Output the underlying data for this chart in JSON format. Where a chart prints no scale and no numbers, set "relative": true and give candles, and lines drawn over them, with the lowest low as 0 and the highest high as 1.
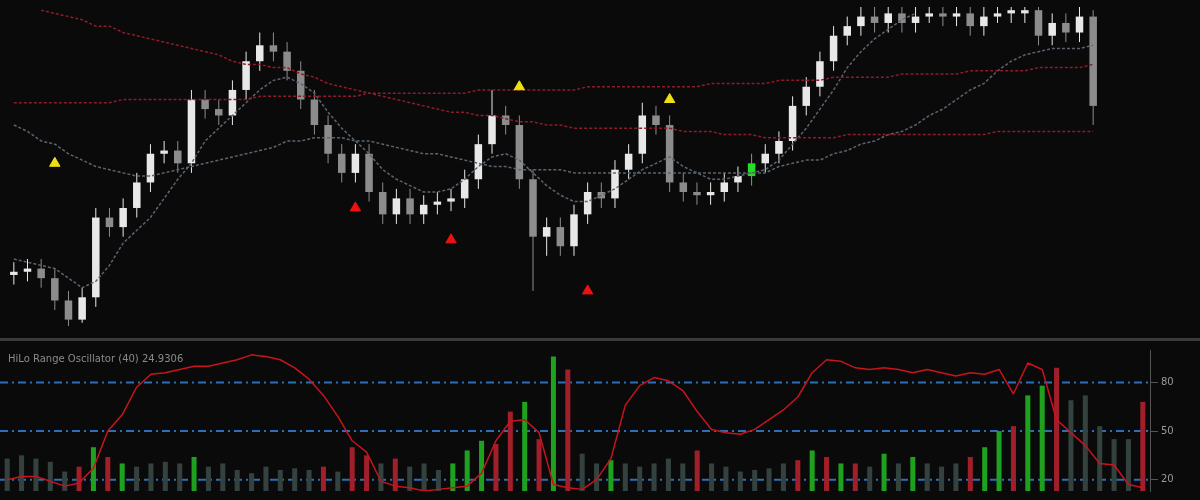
{
  "chart_data": [
    {
      "type": "candlestick",
      "relative": true,
      "legend": false,
      "grid": false,
      "tick_labels": false,
      "categories": [
        null,
        null,
        null,
        null,
        null,
        null,
        null,
        null,
        null,
        null,
        null,
        null,
        null,
        null,
        null,
        null,
        null,
        null,
        null,
        null,
        null,
        null,
        null,
        null,
        null,
        null,
        null,
        null,
        null,
        null,
        null,
        null,
        null,
        null,
        null,
        null,
        null,
        null,
        null,
        null,
        null,
        null,
        null,
        null,
        null,
        null,
        null,
        null,
        null,
        null,
        null,
        null,
        null,
        null,
        null,
        null,
        null,
        null,
        null,
        null,
        null,
        null,
        null,
        null,
        null,
        null,
        null,
        null,
        null,
        null,
        null,
        null,
        null,
        null,
        null,
        null,
        null,
        null,
        null,
        null
      ],
      "ohlc": [
        [
          0.16,
          0.2,
          0.13,
          0.17
        ],
        [
          0.17,
          0.21,
          0.14,
          0.18
        ],
        [
          0.18,
          0.21,
          0.12,
          0.15
        ],
        [
          0.15,
          0.18,
          0.05,
          0.08
        ],
        [
          0.08,
          0.11,
          0,
          0.02
        ],
        [
          0.02,
          0.12,
          0.01,
          0.09
        ],
        [
          0.09,
          0.37,
          0.06,
          0.34
        ],
        [
          0.34,
          0.37,
          0.28,
          0.31
        ],
        [
          0.31,
          0.4,
          0.28,
          0.37
        ],
        [
          0.37,
          0.48,
          0.34,
          0.45
        ],
        [
          0.45,
          0.57,
          0.42,
          0.54
        ],
        [
          0.54,
          0.58,
          0.51,
          0.55
        ],
        [
          0.55,
          0.58,
          0.48,
          0.51
        ],
        [
          0.51,
          0.74,
          0.48,
          0.71
        ],
        [
          0.71,
          0.74,
          0.65,
          0.68
        ],
        [
          0.68,
          0.71,
          0.63,
          0.66
        ],
        [
          0.66,
          0.77,
          0.63,
          0.74
        ],
        [
          0.74,
          0.86,
          0.71,
          0.83
        ],
        [
          0.83,
          0.92,
          0.8,
          0.88
        ],
        [
          0.88,
          0.92,
          0.83,
          0.86
        ],
        [
          0.86,
          0.89,
          0.77,
          0.8
        ],
        [
          0.8,
          0.83,
          0.68,
          0.71
        ],
        [
          0.71,
          0.74,
          0.6,
          0.63
        ],
        [
          0.63,
          0.66,
          0.51,
          0.54
        ],
        [
          0.54,
          0.57,
          0.45,
          0.48
        ],
        [
          0.48,
          0.57,
          0.45,
          0.54
        ],
        [
          0.54,
          0.57,
          0.39,
          0.42
        ],
        [
          0.42,
          0.45,
          0.32,
          0.35
        ],
        [
          0.35,
          0.43,
          0.32,
          0.4
        ],
        [
          0.4,
          0.43,
          0.32,
          0.35
        ],
        [
          0.35,
          0.41,
          0.32,
          0.38
        ],
        [
          0.38,
          0.42,
          0.35,
          0.39
        ],
        [
          0.39,
          0.43,
          0.36,
          0.4
        ],
        [
          0.4,
          0.49,
          0.37,
          0.46
        ],
        [
          0.46,
          0.6,
          0.43,
          0.57
        ],
        [
          0.57,
          0.74,
          0.54,
          0.66
        ],
        [
          0.66,
          0.69,
          0.6,
          0.63
        ],
        [
          0.63,
          0.66,
          0.43,
          0.46
        ],
        [
          0.46,
          0.49,
          0.11,
          0.28
        ],
        [
          0.28,
          0.34,
          0.22,
          0.31
        ],
        [
          0.31,
          0.34,
          0.22,
          0.25
        ],
        [
          0.25,
          0.38,
          0.22,
          0.35
        ],
        [
          0.35,
          0.45,
          0.32,
          0.42
        ],
        [
          0.42,
          0.45,
          0.37,
          0.4
        ],
        [
          0.4,
          0.52,
          0.37,
          0.49
        ],
        [
          0.49,
          0.57,
          0.46,
          0.54
        ],
        [
          0.54,
          0.7,
          0.51,
          0.66
        ],
        [
          0.66,
          0.69,
          0.6,
          0.63
        ],
        [
          0.63,
          0.66,
          0.42,
          0.45
        ],
        [
          0.45,
          0.48,
          0.39,
          0.42
        ],
        [
          0.42,
          0.45,
          0.38,
          0.41
        ],
        [
          0.41,
          0.45,
          0.38,
          0.42
        ],
        [
          0.42,
          0.48,
          0.39,
          0.45
        ],
        [
          0.45,
          0.5,
          0.42,
          0.47
        ],
        [
          0.47,
          0.54,
          0.44,
          0.51
        ],
        [
          0.51,
          0.57,
          0.48,
          0.54
        ],
        [
          0.54,
          0.61,
          0.51,
          0.58
        ],
        [
          0.58,
          0.72,
          0.55,
          0.69
        ],
        [
          0.69,
          0.78,
          0.66,
          0.75
        ],
        [
          0.75,
          0.86,
          0.72,
          0.83
        ],
        [
          0.83,
          0.94,
          0.8,
          0.91
        ],
        [
          0.91,
          0.97,
          0.88,
          0.94
        ],
        [
          0.94,
          1,
          0.91,
          0.97
        ],
        [
          0.97,
          1,
          0.92,
          0.95
        ],
        [
          0.95,
          1,
          0.92,
          0.98
        ],
        [
          0.98,
          1,
          0.92,
          0.95
        ],
        [
          0.95,
          1,
          0.92,
          0.97
        ],
        [
          0.97,
          1,
          0.95,
          0.98
        ],
        [
          0.98,
          1,
          0.94,
          0.97
        ],
        [
          0.97,
          1,
          0.94,
          0.98
        ],
        [
          0.98,
          1,
          0.91,
          0.94
        ],
        [
          0.94,
          1,
          0.91,
          0.97
        ],
        [
          0.97,
          1,
          0.95,
          0.98
        ],
        [
          0.98,
          1,
          0.95,
          0.99
        ],
        [
          0.98,
          1,
          0.95,
          0.99
        ],
        [
          0.99,
          1,
          0.88,
          0.91
        ],
        [
          0.91,
          0.98,
          0.88,
          0.95
        ],
        [
          0.95,
          0.98,
          0.89,
          0.92
        ],
        [
          0.92,
          1,
          0.89,
          0.97
        ],
        [
          0.97,
          0.99,
          0.63,
          0.69
        ]
      ],
      "colors": [
        "#e8e8e8",
        "#e8e8e8",
        "#8c8c8c",
        "#8c8c8c",
        "#8c8c8c",
        "#e8e8e8",
        "#e8e8e8",
        "#8c8c8c",
        "#e8e8e8",
        "#e8e8e8",
        "#e8e8e8",
        "#e8e8e8",
        "#8c8c8c",
        "#e8e8e8",
        "#8c8c8c",
        "#8c8c8c",
        "#e8e8e8",
        "#e8e8e8",
        "#e8e8e8",
        "#8c8c8c",
        "#8c8c8c",
        "#8c8c8c",
        "#8c8c8c",
        "#8c8c8c",
        "#8c8c8c",
        "#e8e8e8",
        "#8c8c8c",
        "#8c8c8c",
        "#e8e8e8",
        "#8c8c8c",
        "#e8e8e8",
        "#e8e8e8",
        "#e8e8e8",
        "#e8e8e8",
        "#e8e8e8",
        "#e8e8e8",
        "#8c8c8c",
        "#8c8c8c",
        "#8c8c8c",
        "#e8e8e8",
        "#8c8c8c",
        "#e8e8e8",
        "#e8e8e8",
        "#8c8c8c",
        "#e8e8e8",
        "#e8e8e8",
        "#e8e8e8",
        "#8c8c8c",
        "#8c8c8c",
        "#8c8c8c",
        "#8c8c8c",
        "#e8e8e8",
        "#e8e8e8",
        "#e8e8e8",
        "#22dd22",
        "#e8e8e8",
        "#e8e8e8",
        "#e8e8e8",
        "#e8e8e8",
        "#e8e8e8",
        "#e8e8e8",
        "#e8e8e8",
        "#e8e8e8",
        "#8c8c8c",
        "#e8e8e8",
        "#8c8c8c",
        "#e8e8e8",
        "#e8e8e8",
        "#8c8c8c",
        "#e8e8e8",
        "#8c8c8c",
        "#e8e8e8",
        "#e8e8e8",
        "#e8e8e8",
        "#e8e8e8",
        "#8c8c8c",
        "#e8e8e8",
        "#8c8c8c",
        "#e8e8e8",
        "#8c8c8c"
      ],
      "series": [
        {
          "type": "line",
          "color": "#8e1a2c",
          "line_style": "dotted",
          "values": [
            null,
            null,
            0.99,
            0.98,
            0.97,
            0.96,
            0.94,
            0.94,
            0.92,
            0.91,
            0.9,
            0.89,
            0.88,
            0.87,
            0.86,
            0.85,
            0.83,
            0.82,
            0.82,
            0.81,
            0.81,
            0.79,
            0.78,
            0.76,
            0.75,
            0.74,
            0.73,
            0.72,
            0.71,
            0.7,
            0.69,
            0.68,
            0.67,
            0.67,
            0.66,
            0.66,
            0.65,
            0.64,
            0.64,
            0.63,
            0.63,
            0.62,
            0.62,
            0.62,
            0.62,
            0.62,
            0.62,
            0.62,
            0.62,
            0.61,
            0.61,
            0.61,
            0.6,
            0.6,
            0.6,
            0.59,
            0.59,
            0.59,
            0.59,
            0.59,
            0.59,
            0.6,
            0.6,
            0.6,
            0.6,
            0.6,
            0.6,
            0.6,
            0.6,
            0.6,
            0.6,
            0.6,
            0.61,
            0.61,
            0.61,
            0.61,
            0.61,
            0.61,
            0.61,
            0.61
          ]
        },
        {
          "type": "line",
          "color": "#8e1a2c",
          "line_style": "dotted",
          "values": [
            0.7,
            0.7,
            0.7,
            0.7,
            0.7,
            0.7,
            0.7,
            0.7,
            0.71,
            0.71,
            0.71,
            0.71,
            0.71,
            0.71,
            0.71,
            0.71,
            0.71,
            0.71,
            0.72,
            0.72,
            0.72,
            0.72,
            0.72,
            0.72,
            0.72,
            0.72,
            0.73,
            0.73,
            0.73,
            0.73,
            0.73,
            0.73,
            0.73,
            0.73,
            0.74,
            0.74,
            0.74,
            0.74,
            0.74,
            0.74,
            0.74,
            0.74,
            0.75,
            0.75,
            0.75,
            0.75,
            0.75,
            0.75,
            0.75,
            0.75,
            0.75,
            0.76,
            0.76,
            0.76,
            0.76,
            0.76,
            0.77,
            0.77,
            0.77,
            0.77,
            0.78,
            0.78,
            0.78,
            0.78,
            0.78,
            0.79,
            0.79,
            0.79,
            0.79,
            0.79,
            0.8,
            0.8,
            0.8,
            0.8,
            0.8,
            0.81,
            0.81,
            0.81,
            0.81,
            0.82
          ]
        },
        {
          "type": "line",
          "color": "#5a6470",
          "line_style": "dotted",
          "values": [
            0.63,
            0.61,
            0.58,
            0.57,
            0.54,
            0.52,
            0.5,
            0.49,
            0.48,
            0.47,
            0.47,
            0.48,
            0.49,
            0.5,
            0.51,
            0.52,
            0.53,
            0.54,
            0.55,
            0.56,
            0.58,
            0.58,
            0.59,
            0.59,
            0.59,
            0.58,
            0.58,
            0.57,
            0.56,
            0.55,
            0.54,
            0.54,
            0.53,
            0.52,
            0.51,
            0.5,
            0.5,
            0.49,
            0.49,
            0.49,
            0.49,
            0.48,
            0.48,
            0.48,
            0.48,
            0.48,
            0.48,
            0.48,
            0.48,
            0.48,
            0.48,
            0.48,
            0.48,
            0.48,
            0.48,
            0.48,
            0.5,
            0.51,
            0.52,
            0.52,
            0.54,
            0.55,
            0.57,
            0.58,
            0.6,
            0.61,
            0.63,
            0.66,
            0.68,
            0.71,
            0.74,
            0.76,
            0.8,
            0.83,
            0.85,
            0.86,
            0.87,
            0.87,
            0.87,
            0.88
          ]
        },
        {
          "type": "line",
          "color": "#5a6470",
          "line_style": "dotted",
          "values": [
            0.21,
            0.2,
            0.19,
            0.18,
            0.15,
            0.12,
            0.14,
            0.19,
            0.26,
            0.3,
            0.34,
            0.4,
            0.46,
            0.51,
            0.58,
            0.62,
            0.66,
            0.7,
            0.74,
            0.77,
            0.78,
            0.76,
            0.73,
            0.67,
            0.62,
            0.58,
            0.54,
            0.49,
            0.46,
            0.44,
            0.42,
            0.42,
            0.43,
            0.46,
            0.5,
            0.53,
            0.54,
            0.52,
            0.48,
            0.44,
            0.41,
            0.39,
            0.39,
            0.41,
            0.43,
            0.46,
            0.49,
            0.51,
            0.53,
            0.5,
            0.48,
            0.46,
            0.46,
            0.47,
            0.48,
            0.49,
            0.52,
            0.57,
            0.62,
            0.68,
            0.74,
            0.81,
            0.86,
            0.9,
            0.93,
            0.96,
            0.98,
            null,
            null,
            null,
            null,
            null,
            null,
            null,
            null,
            null,
            null,
            null,
            null,
            null
          ]
        },
        {
          "type": "scatter",
          "color": "#f0e010",
          "marker": "triangle",
          "values": [
            null,
            null,
            null,
            0.51,
            null,
            null,
            null,
            null,
            null,
            null,
            null,
            null,
            null,
            null,
            null,
            null,
            null,
            null,
            null,
            null,
            null,
            null,
            null,
            null,
            null,
            null,
            null,
            null,
            null,
            null,
            null,
            null,
            null,
            null,
            null,
            null,
            null,
            0.75,
            null,
            null,
            null,
            null,
            null,
            null,
            null,
            null,
            null,
            null,
            0.71,
            null,
            null,
            null,
            null,
            null,
            null,
            null,
            null,
            null,
            null,
            null,
            null,
            null,
            null,
            null,
            null,
            null,
            null,
            null,
            null,
            null,
            null,
            null,
            null,
            null,
            null,
            null,
            null,
            null,
            null,
            null
          ]
        },
        {
          "type": "scatter",
          "color": "#ee1111",
          "marker": "triangle",
          "values": [
            null,
            null,
            null,
            null,
            null,
            null,
            null,
            null,
            null,
            null,
            null,
            null,
            null,
            null,
            null,
            null,
            null,
            null,
            null,
            null,
            null,
            null,
            null,
            null,
            null,
            0.37,
            null,
            null,
            null,
            null,
            null,
            null,
            0.27,
            null,
            null,
            null,
            null,
            null,
            null,
            null,
            null,
            null,
            0.11,
            null,
            null,
            null,
            null,
            null,
            null,
            null,
            null,
            null,
            null,
            null,
            null,
            null,
            null,
            null,
            null,
            null,
            null,
            null,
            null,
            null,
            null,
            null,
            null,
            null,
            null,
            null,
            null,
            null,
            null,
            null,
            null,
            null,
            null,
            null,
            null,
            null
          ]
        }
      ]
    },
    {
      "type": "line",
      "title": "HiLo Range Oscillator (40) 24.9306",
      "legend": false,
      "grid": false,
      "tick_labels": "y",
      "categories": [
        null,
        null,
        null,
        null,
        null,
        null,
        null,
        null,
        null,
        null,
        null,
        null,
        null,
        null,
        null,
        null,
        null,
        null,
        null,
        null,
        null,
        null,
        null,
        null,
        null,
        null,
        null,
        null,
        null,
        null,
        null,
        null,
        null,
        null,
        null,
        null,
        null,
        null,
        null,
        null,
        null,
        null,
        null,
        null,
        null,
        null,
        null,
        null,
        null,
        null,
        null,
        null,
        null,
        null,
        null,
        null,
        null,
        null,
        null,
        null,
        null,
        null,
        null,
        null,
        null,
        null,
        null,
        null,
        null,
        null,
        null,
        null,
        null,
        null,
        null,
        null,
        null,
        null,
        null,
        null
      ],
      "ylim": [
        13,
        100
      ],
      "yticks": [
        20,
        50,
        80
      ],
      "ref_lines": [
        {
          "axis": "y",
          "value": 80,
          "color": "#2a70b8",
          "line_style": "dashed"
        },
        {
          "axis": "y",
          "value": 50,
          "color": "#2a70b8",
          "line_style": "dashed"
        },
        {
          "axis": "y",
          "value": 20,
          "color": "#2a70b8",
          "line_style": "dashed"
        }
      ],
      "series": [
        {
          "type": "line",
          "color": "#c8141e",
          "values": [
            20,
            22,
            22,
            19,
            16,
            18,
            27,
            50,
            60,
            77,
            85,
            86,
            88,
            90,
            90,
            92,
            94,
            97,
            96,
            94,
            89,
            82,
            72,
            59,
            44,
            37,
            19,
            16,
            15,
            13,
            14,
            15,
            16,
            24,
            44,
            56,
            57,
            49,
            17,
            15,
            14,
            20,
            33,
            66,
            78,
            83,
            81,
            75,
            62,
            51,
            49,
            48,
            51,
            57,
            63,
            71,
            86,
            94,
            93,
            89,
            88,
            89,
            88,
            86,
            88,
            86,
            84,
            86,
            85,
            88,
            73,
            92,
            88,
            57,
            49,
            41,
            30,
            29,
            17,
            15
          ]
        },
        {
          "type": "bar",
          "colors": [
            "#34423f",
            "#34423f",
            "#34423f",
            "#34423f",
            "#34423f",
            "#a01f2a",
            "#1fa01f",
            "#a01f2a",
            "#1fa01f",
            "#34423f",
            "#34423f",
            "#34423f",
            "#34423f",
            "#1fa01f",
            "#34423f",
            "#34423f",
            "#34423f",
            "#34423f",
            "#34423f",
            "#34423f",
            "#34423f",
            "#34423f",
            "#a01f2a",
            "#34423f",
            "#a01f2a",
            "#a01f2a",
            "#34423f",
            "#a01f2a",
            "#34423f",
            "#34423f",
            "#34423f",
            "#1fa01f",
            "#1fa01f",
            "#1fa01f",
            "#a01f2a",
            "#a01f2a",
            "#1fa01f",
            "#a01f2a",
            "#1fa01f",
            "#a01f2a",
            "#34423f",
            "#34423f",
            "#1fa01f",
            "#34423f",
            "#34423f",
            "#34423f",
            "#34423f",
            "#34423f",
            "#a01f2a",
            "#34423f",
            "#34423f",
            "#34423f",
            "#34423f",
            "#34423f",
            "#34423f",
            "#a01f2a",
            "#1fa01f",
            "#a01f2a",
            "#1fa01f",
            "#a01f2a",
            "#34423f",
            "#1fa01f",
            "#34423f",
            "#1fa01f",
            "#34423f",
            "#34423f",
            "#34423f",
            "#a01f2a",
            "#1fa01f",
            "#1fa01f",
            "#a01f2a",
            "#1fa01f",
            "#1fa01f",
            "#a01f2a",
            "#34423f",
            "#34423f",
            "#34423f",
            "#34423f",
            "#34423f",
            "#a01f2a"
          ],
          "values": [
            33,
            35,
            33,
            31,
            25,
            28,
            40,
            34,
            30,
            28,
            30,
            31,
            30,
            34,
            28,
            30,
            26,
            24,
            28,
            26,
            27,
            26,
            28,
            25,
            40,
            35,
            30,
            33,
            28,
            30,
            26,
            30,
            38,
            44,
            42,
            62,
            68,
            45,
            96,
            88,
            36,
            30,
            32,
            30,
            28,
            30,
            33,
            30,
            38,
            30,
            28,
            25,
            26,
            27,
            30,
            32,
            38,
            34,
            30,
            30,
            28,
            36,
            30,
            34,
            30,
            28,
            30,
            34,
            40,
            50,
            53,
            72,
            78,
            89,
            69,
            72,
            53,
            45,
            45,
            68
          ]
        }
      ]
    }
  ]
}
